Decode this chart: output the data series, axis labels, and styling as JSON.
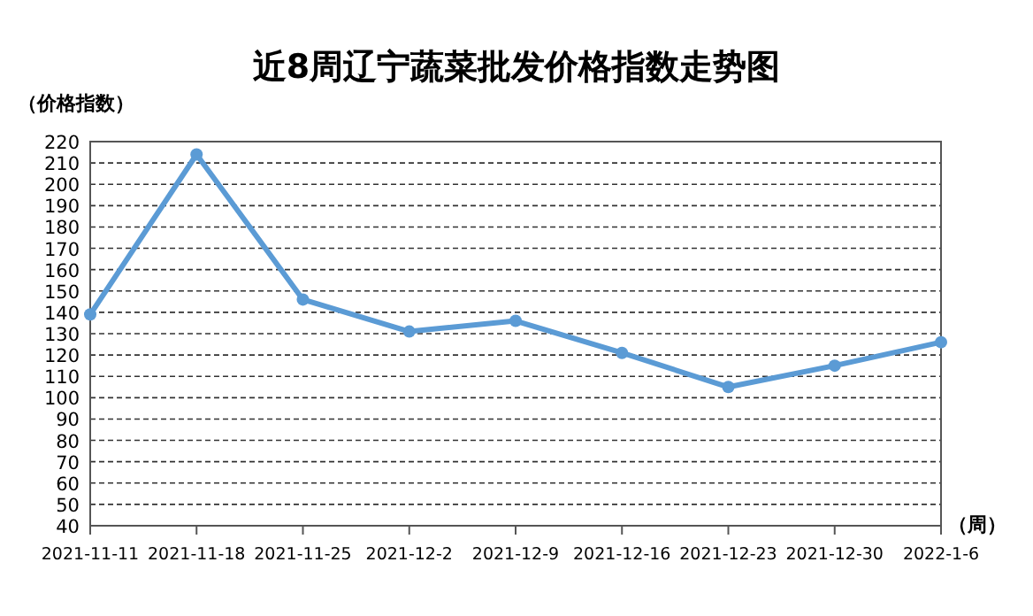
{
  "chart_data": {
    "type": "line",
    "title": "近8周辽宁蔬菜批发价格指数走势图",
    "ylabel": "（价格指数）",
    "xlabel": "（周）",
    "categories": [
      "2021-11-11",
      "2021-11-18",
      "2021-11-25",
      "2021-12-2",
      "2021-12-9",
      "2021-12-16",
      "2021-12-23",
      "2021-12-30",
      "2022-1-6"
    ],
    "series": [
      {
        "color": "#5b9bd5",
        "values": [
          139,
          214,
          146,
          131,
          136,
          121,
          105,
          115,
          126
        ]
      }
    ],
    "ylim": [
      40,
      220
    ],
    "yticks": [
      40,
      50,
      60,
      70,
      80,
      90,
      100,
      110,
      120,
      130,
      140,
      150,
      160,
      170,
      180,
      190,
      200,
      210,
      220
    ],
    "grid": "y",
    "marker": "circle"
  }
}
